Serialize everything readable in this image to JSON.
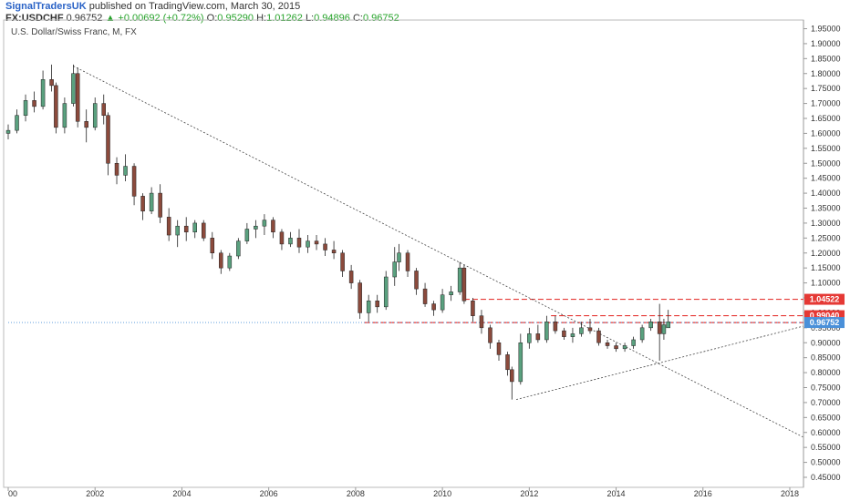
{
  "header": {
    "author": "SignalTradersUK",
    "published": "published on TradingView.com, March 30, 2015",
    "symbol": "FX:USDCHF",
    "last": "0.96752",
    "change_arrow": "▲",
    "change": "+0.00692 (+0.72%)",
    "o_label": "O:",
    "o_value": "0.95290",
    "h_label": "H:",
    "h_value": "1.01262",
    "l_label": "L:",
    "l_value": "0.94896",
    "c_label": "C:",
    "c_value": "0.96752"
  },
  "chart_data": {
    "type": "candlestick",
    "title": "U.S. Dollar/Swiss Franc, M, FX",
    "x_ticks": [
      "00",
      "2002",
      "2004",
      "2006",
      "2008",
      "2010",
      "2012",
      "2014",
      "2016",
      "2018"
    ],
    "x_tick_years": [
      2000,
      2002,
      2004,
      2006,
      2008,
      2010,
      2012,
      2014,
      2016,
      2018
    ],
    "y_ticks": [
      "1.95000",
      "1.90000",
      "1.85000",
      "1.80000",
      "1.75000",
      "1.70000",
      "1.65000",
      "1.60000",
      "1.55000",
      "1.50000",
      "1.45000",
      "1.40000",
      "1.35000",
      "1.30000",
      "1.25000",
      "1.20000",
      "1.15000",
      "1.10000",
      "1.05000",
      "1.00000",
      "0.95000",
      "0.90000",
      "0.85000",
      "0.80000",
      "0.75000",
      "0.70000",
      "0.65000",
      "0.60000",
      "0.55000",
      "0.50000",
      "0.45000"
    ],
    "ylim": [
      0.43,
      1.97
    ],
    "xlim": [
      2000.0,
      2018.4
    ],
    "price_tags": [
      {
        "label": "1.04522",
        "value": 1.04522,
        "color": "#e53935"
      },
      {
        "label": "0.99040",
        "value": 0.9904,
        "color": "#e53935"
      },
      {
        "label": "0.96752",
        "value": 0.96752,
        "color": "#4a90d9"
      }
    ],
    "horizontal_lines": [
      {
        "value": 1.04522,
        "from": 2010.5,
        "style": "dashed",
        "color": "#e53935"
      },
      {
        "value": 0.9904,
        "from": 2012.5,
        "style": "dashed",
        "color": "#e53935"
      },
      {
        "value": 0.9675,
        "from": 2008.2,
        "style": "dashed",
        "color": "#e53935"
      },
      {
        "value": 0.96752,
        "from": 2000.0,
        "style": "dotted",
        "color": "#4a90d9"
      }
    ],
    "trend_lines": [
      {
        "x1": 2001.5,
        "y1": 1.825,
        "x2": 2018.3,
        "y2": 0.585
      },
      {
        "x1": 2011.7,
        "y1": 0.71,
        "x2": 2018.3,
        "y2": 0.955
      }
    ],
    "candles": [
      {
        "t": 2000.0,
        "o": 1.6,
        "h": 1.63,
        "l": 1.58,
        "c": 1.61
      },
      {
        "t": 2000.2,
        "o": 1.61,
        "h": 1.68,
        "l": 1.6,
        "c": 1.66
      },
      {
        "t": 2000.4,
        "o": 1.66,
        "h": 1.73,
        "l": 1.64,
        "c": 1.71
      },
      {
        "t": 2000.6,
        "o": 1.71,
        "h": 1.74,
        "l": 1.67,
        "c": 1.69
      },
      {
        "t": 2000.8,
        "o": 1.69,
        "h": 1.81,
        "l": 1.68,
        "c": 1.78
      },
      {
        "t": 2001.0,
        "o": 1.78,
        "h": 1.83,
        "l": 1.74,
        "c": 1.76
      },
      {
        "t": 2001.1,
        "o": 1.76,
        "h": 1.77,
        "l": 1.6,
        "c": 1.62
      },
      {
        "t": 2001.3,
        "o": 1.62,
        "h": 1.72,
        "l": 1.6,
        "c": 1.7
      },
      {
        "t": 2001.5,
        "o": 1.7,
        "h": 1.83,
        "l": 1.69,
        "c": 1.8
      },
      {
        "t": 2001.6,
        "o": 1.8,
        "h": 1.82,
        "l": 1.62,
        "c": 1.64
      },
      {
        "t": 2001.8,
        "o": 1.64,
        "h": 1.68,
        "l": 1.57,
        "c": 1.62
      },
      {
        "t": 2002.0,
        "o": 1.62,
        "h": 1.72,
        "l": 1.61,
        "c": 1.7
      },
      {
        "t": 2002.2,
        "o": 1.7,
        "h": 1.73,
        "l": 1.63,
        "c": 1.66
      },
      {
        "t": 2002.3,
        "o": 1.66,
        "h": 1.67,
        "l": 1.46,
        "c": 1.5
      },
      {
        "t": 2002.5,
        "o": 1.5,
        "h": 1.52,
        "l": 1.43,
        "c": 1.46
      },
      {
        "t": 2002.7,
        "o": 1.46,
        "h": 1.53,
        "l": 1.44,
        "c": 1.49
      },
      {
        "t": 2002.9,
        "o": 1.49,
        "h": 1.5,
        "l": 1.36,
        "c": 1.39
      },
      {
        "t": 2003.1,
        "o": 1.39,
        "h": 1.4,
        "l": 1.31,
        "c": 1.34
      },
      {
        "t": 2003.3,
        "o": 1.34,
        "h": 1.42,
        "l": 1.33,
        "c": 1.4
      },
      {
        "t": 2003.5,
        "o": 1.4,
        "h": 1.43,
        "l": 1.3,
        "c": 1.32
      },
      {
        "t": 2003.7,
        "o": 1.32,
        "h": 1.35,
        "l": 1.24,
        "c": 1.26
      },
      {
        "t": 2003.9,
        "o": 1.26,
        "h": 1.31,
        "l": 1.22,
        "c": 1.29
      },
      {
        "t": 2004.1,
        "o": 1.29,
        "h": 1.32,
        "l": 1.24,
        "c": 1.27
      },
      {
        "t": 2004.3,
        "o": 1.27,
        "h": 1.31,
        "l": 1.25,
        "c": 1.3
      },
      {
        "t": 2004.5,
        "o": 1.3,
        "h": 1.31,
        "l": 1.24,
        "c": 1.25
      },
      {
        "t": 2004.7,
        "o": 1.25,
        "h": 1.27,
        "l": 1.18,
        "c": 1.2
      },
      {
        "t": 2004.9,
        "o": 1.2,
        "h": 1.21,
        "l": 1.13,
        "c": 1.15
      },
      {
        "t": 2005.1,
        "o": 1.15,
        "h": 1.2,
        "l": 1.14,
        "c": 1.19
      },
      {
        "t": 2005.3,
        "o": 1.19,
        "h": 1.25,
        "l": 1.18,
        "c": 1.24
      },
      {
        "t": 2005.5,
        "o": 1.24,
        "h": 1.3,
        "l": 1.23,
        "c": 1.28
      },
      {
        "t": 2005.7,
        "o": 1.28,
        "h": 1.31,
        "l": 1.25,
        "c": 1.29
      },
      {
        "t": 2005.9,
        "o": 1.29,
        "h": 1.33,
        "l": 1.26,
        "c": 1.31
      },
      {
        "t": 2006.1,
        "o": 1.31,
        "h": 1.32,
        "l": 1.25,
        "c": 1.27
      },
      {
        "t": 2006.3,
        "o": 1.27,
        "h": 1.28,
        "l": 1.21,
        "c": 1.23
      },
      {
        "t": 2006.5,
        "o": 1.23,
        "h": 1.27,
        "l": 1.22,
        "c": 1.25
      },
      {
        "t": 2006.7,
        "o": 1.25,
        "h": 1.28,
        "l": 1.2,
        "c": 1.22
      },
      {
        "t": 2006.9,
        "o": 1.22,
        "h": 1.26,
        "l": 1.2,
        "c": 1.24
      },
      {
        "t": 2007.1,
        "o": 1.24,
        "h": 1.26,
        "l": 1.21,
        "c": 1.23
      },
      {
        "t": 2007.3,
        "o": 1.23,
        "h": 1.25,
        "l": 1.19,
        "c": 1.21
      },
      {
        "t": 2007.5,
        "o": 1.21,
        "h": 1.24,
        "l": 1.18,
        "c": 1.2
      },
      {
        "t": 2007.7,
        "o": 1.2,
        "h": 1.21,
        "l": 1.12,
        "c": 1.14
      },
      {
        "t": 2007.9,
        "o": 1.14,
        "h": 1.16,
        "l": 1.08,
        "c": 1.1
      },
      {
        "t": 2008.1,
        "o": 1.1,
        "h": 1.11,
        "l": 0.98,
        "c": 1.0
      },
      {
        "t": 2008.3,
        "o": 1.0,
        "h": 1.06,
        "l": 0.97,
        "c": 1.04
      },
      {
        "t": 2008.5,
        "o": 1.04,
        "h": 1.06,
        "l": 1.0,
        "c": 1.02
      },
      {
        "t": 2008.7,
        "o": 1.02,
        "h": 1.14,
        "l": 1.01,
        "c": 1.12
      },
      {
        "t": 2008.9,
        "o": 1.12,
        "h": 1.22,
        "l": 1.09,
        "c": 1.17
      },
      {
        "t": 2009.0,
        "o": 1.17,
        "h": 1.23,
        "l": 1.14,
        "c": 1.2
      },
      {
        "t": 2009.2,
        "o": 1.2,
        "h": 1.21,
        "l": 1.12,
        "c": 1.14
      },
      {
        "t": 2009.4,
        "o": 1.14,
        "h": 1.15,
        "l": 1.06,
        "c": 1.08
      },
      {
        "t": 2009.6,
        "o": 1.08,
        "h": 1.1,
        "l": 1.02,
        "c": 1.03
      },
      {
        "t": 2009.8,
        "o": 1.03,
        "h": 1.04,
        "l": 0.99,
        "c": 1.01
      },
      {
        "t": 2010.0,
        "o": 1.01,
        "h": 1.08,
        "l": 1.0,
        "c": 1.06
      },
      {
        "t": 2010.2,
        "o": 1.06,
        "h": 1.09,
        "l": 1.04,
        "c": 1.07
      },
      {
        "t": 2010.4,
        "o": 1.07,
        "h": 1.17,
        "l": 1.06,
        "c": 1.15
      },
      {
        "t": 2010.5,
        "o": 1.15,
        "h": 1.16,
        "l": 1.03,
        "c": 1.04
      },
      {
        "t": 2010.7,
        "o": 1.04,
        "h": 1.05,
        "l": 0.97,
        "c": 0.99
      },
      {
        "t": 2010.9,
        "o": 0.99,
        "h": 1.01,
        "l": 0.93,
        "c": 0.95
      },
      {
        "t": 2011.1,
        "o": 0.95,
        "h": 0.96,
        "l": 0.88,
        "c": 0.9
      },
      {
        "t": 2011.3,
        "o": 0.9,
        "h": 0.91,
        "l": 0.84,
        "c": 0.86
      },
      {
        "t": 2011.5,
        "o": 0.86,
        "h": 0.87,
        "l": 0.79,
        "c": 0.81
      },
      {
        "t": 2011.6,
        "o": 0.81,
        "h": 0.82,
        "l": 0.71,
        "c": 0.77
      },
      {
        "t": 2011.8,
        "o": 0.77,
        "h": 0.93,
        "l": 0.76,
        "c": 0.9
      },
      {
        "t": 2012.0,
        "o": 0.9,
        "h": 0.95,
        "l": 0.88,
        "c": 0.93
      },
      {
        "t": 2012.2,
        "o": 0.93,
        "h": 0.96,
        "l": 0.9,
        "c": 0.91
      },
      {
        "t": 2012.4,
        "o": 0.91,
        "h": 0.99,
        "l": 0.9,
        "c": 0.97
      },
      {
        "t": 2012.6,
        "o": 0.97,
        "h": 0.99,
        "l": 0.93,
        "c": 0.94
      },
      {
        "t": 2012.8,
        "o": 0.94,
        "h": 0.95,
        "l": 0.91,
        "c": 0.92
      },
      {
        "t": 2013.0,
        "o": 0.92,
        "h": 0.95,
        "l": 0.9,
        "c": 0.93
      },
      {
        "t": 2013.2,
        "o": 0.93,
        "h": 0.97,
        "l": 0.92,
        "c": 0.95
      },
      {
        "t": 2013.4,
        "o": 0.95,
        "h": 0.98,
        "l": 0.93,
        "c": 0.94
      },
      {
        "t": 2013.6,
        "o": 0.94,
        "h": 0.95,
        "l": 0.89,
        "c": 0.9
      },
      {
        "t": 2013.8,
        "o": 0.9,
        "h": 0.91,
        "l": 0.88,
        "c": 0.89
      },
      {
        "t": 2014.0,
        "o": 0.89,
        "h": 0.9,
        "l": 0.87,
        "c": 0.88
      },
      {
        "t": 2014.2,
        "o": 0.88,
        "h": 0.9,
        "l": 0.87,
        "c": 0.89
      },
      {
        "t": 2014.4,
        "o": 0.89,
        "h": 0.92,
        "l": 0.88,
        "c": 0.91
      },
      {
        "t": 2014.6,
        "o": 0.91,
        "h": 0.96,
        "l": 0.9,
        "c": 0.95
      },
      {
        "t": 2014.8,
        "o": 0.95,
        "h": 0.98,
        "l": 0.94,
        "c": 0.97
      },
      {
        "t": 2015.0,
        "o": 0.97,
        "h": 1.03,
        "l": 0.84,
        "c": 0.93
      },
      {
        "t": 2015.1,
        "o": 0.93,
        "h": 0.98,
        "l": 0.91,
        "c": 0.96
      },
      {
        "t": 2015.2,
        "o": 0.95,
        "h": 1.01,
        "l": 0.95,
        "c": 0.97
      }
    ]
  }
}
